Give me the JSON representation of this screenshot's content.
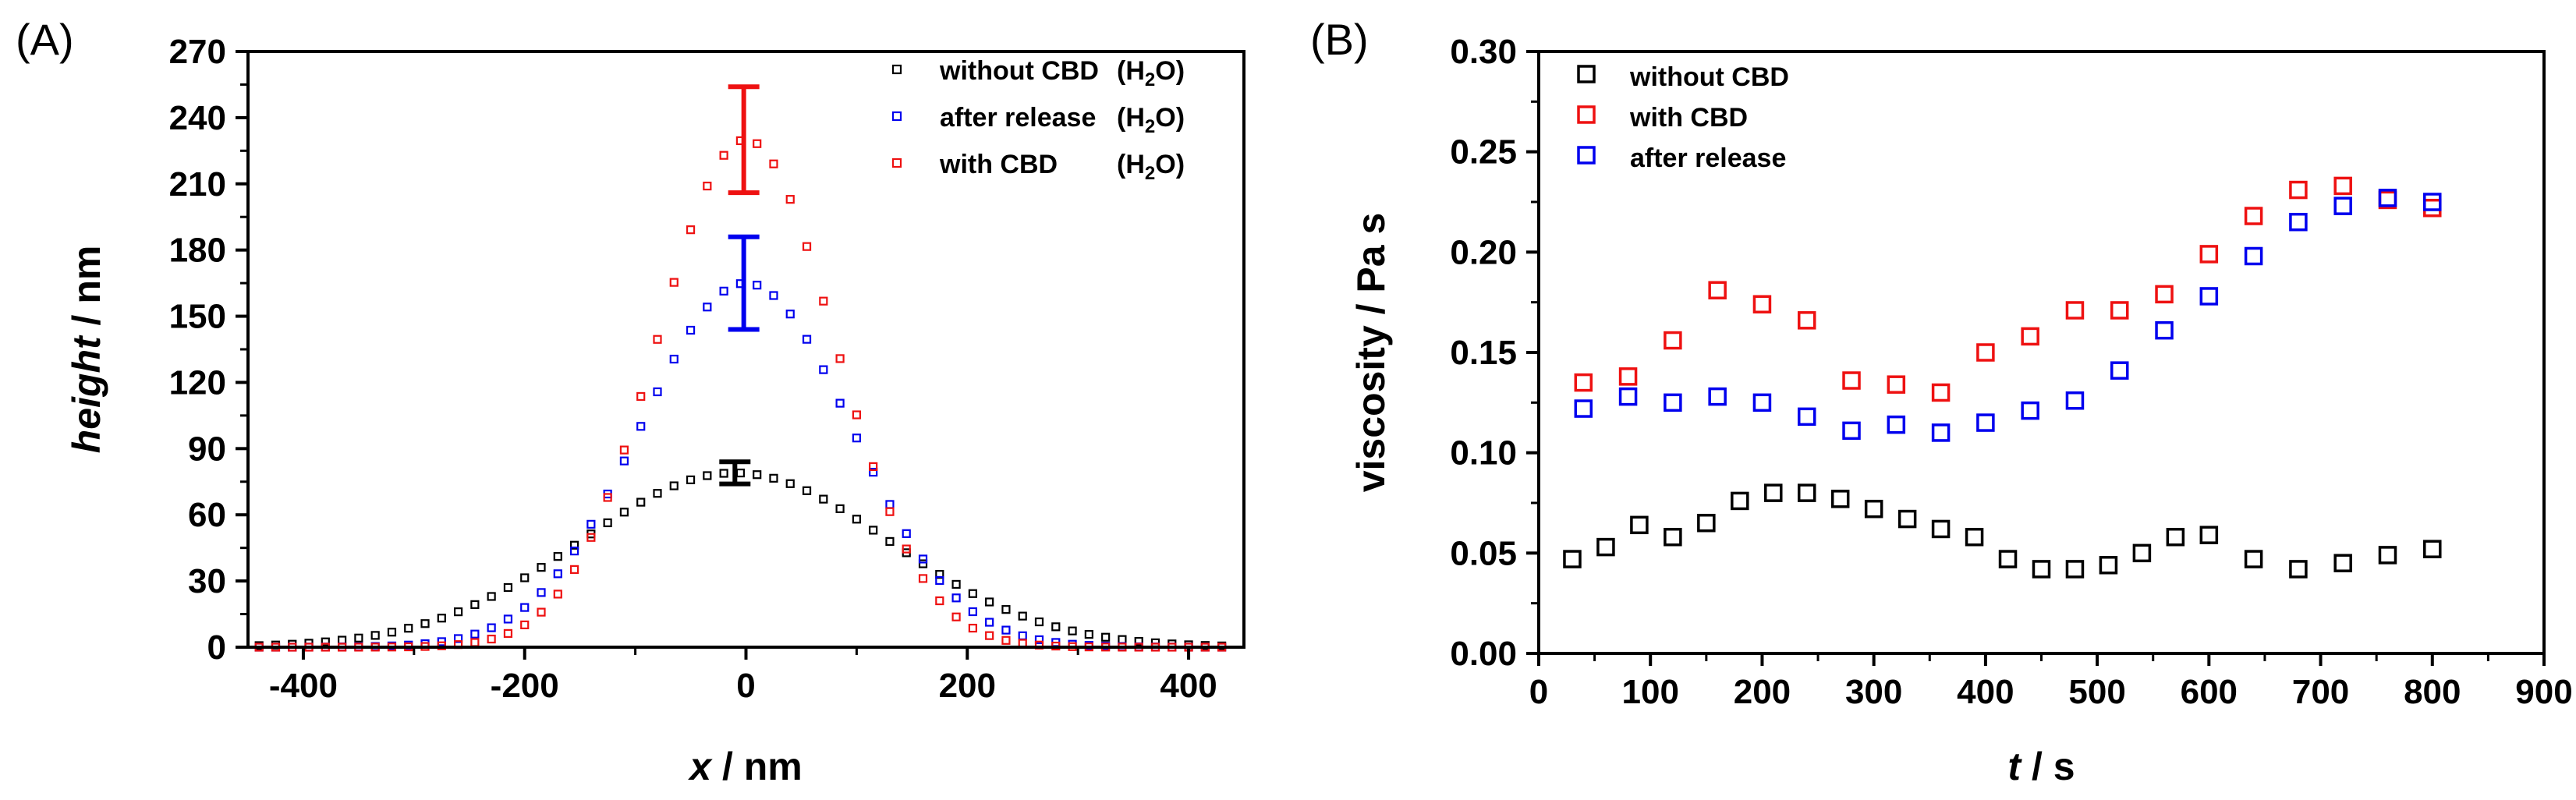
{
  "chart_data": [
    {
      "type": "scatter",
      "panel_label": "(A)",
      "xlabel_var": "x",
      "xlabel_unit": " / nm",
      "ylabel_var": "height",
      "ylabel_unit": " / nm",
      "xlim": [
        -450,
        450
      ],
      "ylim": [
        0,
        270
      ],
      "xticks": [
        -400,
        -200,
        0,
        200,
        400
      ],
      "yticks": [
        0,
        30,
        60,
        90,
        120,
        150,
        180,
        210,
        240,
        270
      ],
      "grid": false,
      "legend_position": "top-right",
      "series": [
        {
          "name": "without CBD",
          "solvent_prefix": "(H",
          "solvent_sub": "2",
          "solvent_suffix": "O)",
          "color": "#000000",
          "profile": "gaussian",
          "peak": 79,
          "center": -10,
          "sigma": 140,
          "x_start": -440,
          "x_end": 440,
          "x_step": 15,
          "error_bar": {
            "x": -10,
            "low": 74,
            "high": 84
          }
        },
        {
          "name": "after release",
          "solvent_prefix": "(H",
          "solvent_sub": "2",
          "solvent_suffix": "O)",
          "color": "#0000ee",
          "profile": "gaussian",
          "peak": 165,
          "center": 0,
          "sigma": 95,
          "x_start": -440,
          "x_end": 440,
          "x_step": 15,
          "error_bar": {
            "x": -2,
            "low": 144,
            "high": 186
          }
        },
        {
          "name": "with CBD",
          "solvent_prefix": "(H",
          "solvent_sub": "2",
          "solvent_suffix": "O)",
          "color": "#ee1111",
          "profile": "gaussian",
          "peak": 230,
          "center": 0,
          "sigma": 80,
          "x_start": -440,
          "x_end": 440,
          "x_step": 15,
          "error_bar": {
            "x": -2,
            "low": 206,
            "high": 254
          }
        }
      ]
    },
    {
      "type": "scatter",
      "panel_label": "(B)",
      "xlabel_var": "t",
      "xlabel_unit": " / s",
      "ylabel": "viscosity / Pa s",
      "xlim": [
        0,
        900
      ],
      "ylim": [
        0,
        0.3
      ],
      "xticks": [
        0,
        100,
        200,
        300,
        400,
        500,
        600,
        700,
        800,
        900
      ],
      "xtick_labels": [
        "0",
        "100",
        "200",
        "300",
        "400",
        "500",
        "600",
        "700",
        "800",
        "900"
      ],
      "yticks": [
        0,
        0.05,
        0.1,
        0.15,
        0.2,
        0.25,
        0.3
      ],
      "ytick_labels": [
        "0.00",
        "0.05",
        "0.10",
        "0.15",
        "0.20",
        "0.25",
        "0.30"
      ],
      "grid": false,
      "legend_position": "top-left",
      "series": [
        {
          "name": "without CBD",
          "color": "#000000",
          "x": [
            30,
            60,
            90,
            120,
            150,
            180,
            210,
            240,
            270,
            300,
            330,
            360,
            390,
            420,
            450,
            480,
            510,
            540,
            570,
            600,
            640,
            680,
            720,
            760,
            800
          ],
          "y": [
            0.047,
            0.053,
            0.064,
            0.058,
            0.065,
            0.076,
            0.08,
            0.08,
            0.077,
            0.072,
            0.067,
            0.062,
            0.058,
            0.047,
            0.042,
            0.042,
            0.044,
            0.05,
            0.058,
            0.059,
            0.047,
            0.042,
            0.045,
            0.049,
            0.052
          ]
        },
        {
          "name": "with CBD",
          "color": "#ee1111",
          "x": [
            40,
            80,
            120,
            160,
            200,
            240,
            280,
            320,
            360,
            400,
            440,
            480,
            520,
            560,
            600,
            640,
            680,
            720,
            760,
            800
          ],
          "y": [
            0.135,
            0.138,
            0.156,
            0.181,
            0.174,
            0.166,
            0.136,
            0.134,
            0.13,
            0.15,
            0.158,
            0.171,
            0.171,
            0.179,
            0.199,
            0.218,
            0.231,
            0.233,
            0.226,
            0.222
          ]
        },
        {
          "name": "after release",
          "color": "#0000ee",
          "x": [
            40,
            80,
            120,
            160,
            200,
            240,
            280,
            320,
            360,
            400,
            440,
            480,
            520,
            560,
            600,
            640,
            680,
            720,
            760,
            800
          ],
          "y": [
            0.122,
            0.128,
            0.125,
            0.128,
            0.125,
            0.118,
            0.111,
            0.114,
            0.11,
            0.115,
            0.121,
            0.126,
            0.141,
            0.161,
            0.178,
            0.198,
            0.215,
            0.223,
            0.227,
            0.225
          ]
        }
      ]
    }
  ]
}
